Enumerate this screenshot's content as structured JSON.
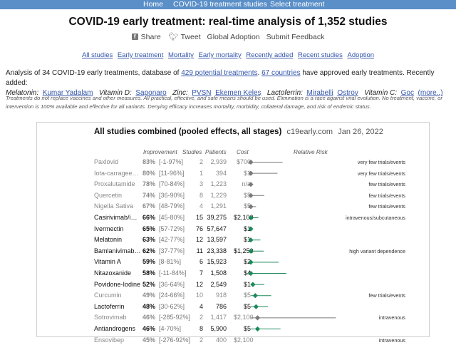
{
  "nav": {
    "home": "Home",
    "treatment_studies": "COVID-19 treatment studies",
    "select_treatment": "Select treatment"
  },
  "title": "COVID-19 early treatment: real-time analysis of 1,352 studies",
  "social": {
    "share": "Share",
    "tweet": "Tweet",
    "global_adoption": "Global Adoption",
    "submit_feedback": "Submit Feedback"
  },
  "tabs": [
    "All studies",
    "Early treatment",
    "Mortality",
    "Early mortality",
    "Recently added",
    "Recent studies",
    "Adoption"
  ],
  "intro": {
    "prefix": "Analysis of 34 COVID-19 early treatments, database of ",
    "potential_link": "429 potential treatments",
    "comma": ". ",
    "countries_link": "67 countries",
    "suffix": " have approved early treatments. Recently added:",
    "melatonin_label": "Melatonin:",
    "melatonin_author": "Kumar Yadalam",
    "vitd_label": "Vitamin D:",
    "vitd_author": "Saponaro",
    "zinc_label": "Zinc:",
    "zinc_author1": "PVSN",
    "zinc_author2": "Ekemen Keleş",
    "lacto_label": "Lactoferrin:",
    "lacto_author1": "Mirabelli",
    "lacto_author2": "Ostrov",
    "vitc_label": "Vitamin C:",
    "vitc_author": "Goc",
    "more": "(more..)"
  },
  "disclaimer": "Treatments do not replace vaccines and other measures. All practical, effective, and safe means should be used. Elimination is a race against viral evolution. No treatment, vaccine, or intervention is 100% available and effective for all variants. Denying efficacy increases mortality, morbidity, collateral damage, and risk of endemic status.",
  "panel": {
    "title": "All studies combined (pooled effects, all stages)",
    "source": "c19early.com",
    "date": "Jan 26, 2022",
    "headers": {
      "improvement": "Improvement",
      "studies": "Studies",
      "patients": "Patients",
      "cost": "Cost",
      "relative_risk": "Relative Risk"
    }
  },
  "colors": {
    "nav": "#5a8fc8",
    "link": "#3355aa",
    "green": "#1b8a5a",
    "gray": "#7a7a7a"
  },
  "chart_data": {
    "type": "forest",
    "x_axis": "Relative Risk",
    "rows": [
      {
        "name": "Paxlovid",
        "improvement": "83%",
        "ci": "[-1-97%]",
        "studies": "2",
        "patients": "2,939",
        "cost": "$700",
        "note": "very few trials/events",
        "rr": 0.17,
        "lo": 0.03,
        "hi": 1.01,
        "color": "gray",
        "style": "late"
      },
      {
        "name": "Iota-carrageenan",
        "improvement": "80%",
        "ci": "[11-96%]",
        "studies": "1",
        "patients": "394",
        "cost": "$1",
        "note": "very few trials/events",
        "rr": 0.2,
        "lo": 0.04,
        "hi": 0.89,
        "color": "gray",
        "style": "late"
      },
      {
        "name": "Proxalutamide",
        "improvement": "78%",
        "ci": "[70-84%]",
        "studies": "3",
        "patients": "1,223",
        "cost": "n/a",
        "note": "few trials/events",
        "rr": 0.22,
        "lo": 0.16,
        "hi": 0.3,
        "color": "gray",
        "style": "late"
      },
      {
        "name": "Quercetin",
        "improvement": "74%",
        "ci": "[36-90%]",
        "studies": "8",
        "patients": "1,229",
        "cost": "$5",
        "note": "few trials/events",
        "rr": 0.26,
        "lo": 0.1,
        "hi": 0.64,
        "color": "gray",
        "style": "late"
      },
      {
        "name": "Nigella Sativa",
        "improvement": "67%",
        "ci": "[48-79%]",
        "studies": "4",
        "patients": "1,291",
        "cost": "$5",
        "note": "few trials/events",
        "rr": 0.33,
        "lo": 0.21,
        "hi": 0.52,
        "color": "gray",
        "style": "late"
      },
      {
        "name": "Casirivimab/imdevimab",
        "improvement": "66%",
        "ci": "[45-80%]",
        "studies": "15",
        "patients": "39,275",
        "cost": "$2,100",
        "note": "intravenous/subcutaneous",
        "rr": 0.34,
        "lo": 0.2,
        "hi": 0.55,
        "color": "green",
        "style": "early"
      },
      {
        "name": "Ivermectin",
        "improvement": "65%",
        "ci": "[57-72%]",
        "studies": "76",
        "patients": "57,647",
        "cost": "$1",
        "note": "",
        "rr": 0.35,
        "lo": 0.28,
        "hi": 0.43,
        "color": "green",
        "style": "early"
      },
      {
        "name": "Melatonin",
        "improvement": "63%",
        "ci": "[42-77%]",
        "studies": "12",
        "patients": "13,597",
        "cost": "$1",
        "note": "",
        "rr": 0.37,
        "lo": 0.23,
        "hi": 0.58,
        "color": "green",
        "style": "early"
      },
      {
        "name": "Bamlanivimab/etesevimab",
        "improvement": "62%",
        "ci": "[37-77%]",
        "studies": "11",
        "patients": "23,338",
        "cost": "$1,250",
        "note": "high variant dependence",
        "rr": 0.38,
        "lo": 0.23,
        "hi": 0.63,
        "color": "green",
        "style": "early"
      },
      {
        "name": "Vitamin A",
        "improvement": "59%",
        "ci": "[8-81%]",
        "studies": "6",
        "patients": "15,923",
        "cost": "$2",
        "note": "",
        "rr": 0.41,
        "lo": 0.19,
        "hi": 0.92,
        "color": "green",
        "style": "early"
      },
      {
        "name": "Nitazoxanide",
        "improvement": "58%",
        "ci": "[-11-84%]",
        "studies": "7",
        "patients": "1,508",
        "cost": "$4",
        "note": "",
        "rr": 0.42,
        "lo": 0.16,
        "hi": 1.11,
        "color": "green",
        "style": "early"
      },
      {
        "name": "Povidone-Iodine",
        "improvement": "52%",
        "ci": "[36-64%]",
        "studies": "12",
        "patients": "2,549",
        "cost": "$1",
        "note": "",
        "rr": 0.48,
        "lo": 0.36,
        "hi": 0.64,
        "color": "green",
        "style": "early"
      },
      {
        "name": "Curcumin",
        "improvement": "49%",
        "ci": "[24-66%]",
        "studies": "10",
        "patients": "918",
        "cost": "$5",
        "note": "few trials/events",
        "rr": 0.51,
        "lo": 0.34,
        "hi": 0.76,
        "color": "green",
        "style": "late"
      },
      {
        "name": "Lactoferrin",
        "improvement": "48%",
        "ci": "[30-62%]",
        "studies": "4",
        "patients": "786",
        "cost": "$5",
        "note": "",
        "rr": 0.52,
        "lo": 0.38,
        "hi": 0.7,
        "color": "green",
        "style": "early"
      },
      {
        "name": "Sotrovimab",
        "improvement": "46%",
        "ci": "[-285-92%]",
        "studies": "2",
        "patients": "1,417",
        "cost": "$2,100",
        "note": "intravenous",
        "rr": 0.54,
        "lo": 0.08,
        "hi": 3.85,
        "color": "gray",
        "style": "late"
      },
      {
        "name": "Antiandrogens",
        "improvement": "46%",
        "ci": "[4-70%]",
        "studies": "8",
        "patients": "5,900",
        "cost": "$5",
        "note": "",
        "rr": 0.54,
        "lo": 0.3,
        "hi": 0.96,
        "color": "green",
        "style": "early"
      },
      {
        "name": "Ensovibep",
        "improvement": "45%",
        "ci": "[-276-92%]",
        "studies": "2",
        "patients": "400",
        "cost": "$2,100",
        "note": "intravenous",
        "rr": 0.55,
        "lo": 0.08,
        "hi": 3.76,
        "color": "gray",
        "style": "late"
      }
    ]
  }
}
